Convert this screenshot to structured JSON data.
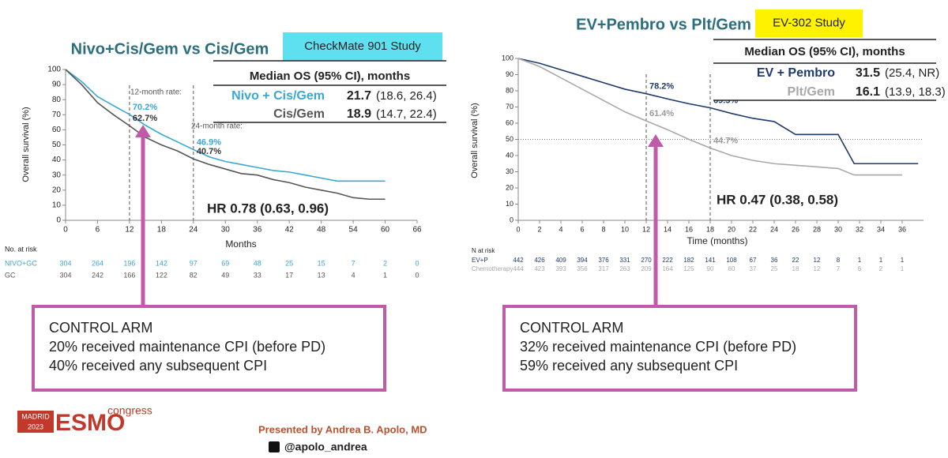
{
  "chart_data": [
    {
      "type": "line",
      "title": "Nivo+Cis/Gem vs Cis/Gem",
      "study": "CheckMate 901 Study",
      "x_label": "Months",
      "y_label": "Overall survival (%)",
      "x": [
        0,
        3,
        6,
        9,
        12,
        15,
        18,
        21,
        24,
        27,
        30,
        33,
        36,
        39,
        42,
        45,
        48,
        51,
        54,
        57,
        60
      ],
      "series": [
        {
          "name": "Nivo + Cis/Gem",
          "color": "#3aa7d4",
          "values": [
            100,
            92,
            82,
            76,
            70.2,
            63,
            57,
            52,
            46.9,
            42,
            39,
            37,
            35,
            33,
            32,
            30,
            28,
            26,
            26,
            26,
            26
          ]
        },
        {
          "name": "Cis/Gem",
          "color": "#555555",
          "values": [
            100,
            90,
            78,
            70,
            62.7,
            55,
            50,
            46,
            40.7,
            37,
            34,
            31,
            30,
            27,
            25,
            22,
            20,
            18,
            15,
            14,
            14
          ]
        }
      ],
      "xlim": [
        0,
        66
      ],
      "xticks": [
        0,
        6,
        12,
        18,
        24,
        30,
        36,
        42,
        48,
        54,
        60,
        66
      ],
      "ylim": [
        0,
        100
      ],
      "yticks": [
        0,
        10,
        20,
        30,
        40,
        50,
        60,
        70,
        80,
        90,
        100
      ],
      "ref_x": [
        12,
        24
      ],
      "notes": [
        "12-month rate:",
        "24-month rate:"
      ],
      "rate_labels": [
        {
          "x": 12,
          "y": 70.2,
          "label": "70.2%",
          "color": "#3aa7d4"
        },
        {
          "x": 12,
          "y": 62.7,
          "label": "62.7%",
          "color": "#333333"
        },
        {
          "x": 24,
          "y": 46.9,
          "label": "46.9%",
          "color": "#3aa7d4"
        },
        {
          "x": 24,
          "y": 40.7,
          "label": "40.7%",
          "color": "#333333"
        }
      ],
      "hr": "HR 0.78 (0.63, 0.96)",
      "median_header": "Median OS (95% CI), months",
      "median_rows": [
        [
          "Nivo + Cis/Gem",
          "21.7",
          "(18.6, 26.4)"
        ],
        [
          "Cis/Gem",
          "18.9",
          "(14.7, 22.4)"
        ]
      ],
      "risk_header": "No. at risk",
      "risk_rows": [
        {
          "name": "NIVO+GC",
          "values": [
            304,
            264,
            196,
            142,
            97,
            69,
            48,
            25,
            15,
            7,
            2,
            0
          ]
        },
        {
          "name": "GC",
          "values": [
            304,
            242,
            166,
            122,
            82,
            49,
            33,
            17,
            13,
            4,
            1,
            0
          ]
        }
      ],
      "control": [
        "CONTROL ARM",
        "20% received maintenance CPI (before PD)",
        "40% received any subsequent CPI"
      ]
    },
    {
      "type": "line",
      "title": "EV+Pembro vs Plt/Gem",
      "study": "EV-302 Study",
      "x_label": "Time (months)",
      "y_label": "Overall survival (%)",
      "x": [
        0,
        2,
        4,
        6,
        8,
        10,
        12,
        14,
        16,
        18,
        20,
        22,
        24,
        26,
        28,
        30,
        31.5,
        32,
        34,
        36,
        37.5
      ],
      "series": [
        {
          "name": "EV + Pembro",
          "color": "#1f3a6e",
          "values": [
            100,
            97,
            93,
            89,
            85,
            81,
            78.2,
            75,
            72,
            69.5,
            66,
            63,
            61,
            53,
            53,
            53,
            35,
            35,
            35,
            35,
            35
          ]
        },
        {
          "name": "Plt/Gem",
          "color": "#a8a8a8",
          "values": [
            100,
            95,
            88,
            81,
            74,
            67,
            61.4,
            56,
            50,
            44.7,
            40,
            37,
            35,
            34,
            33,
            32,
            28,
            28,
            28,
            28,
            null
          ]
        }
      ],
      "xlim": [
        0,
        38
      ],
      "xticks": [
        0,
        2,
        4,
        6,
        8,
        10,
        12,
        14,
        16,
        18,
        20,
        22,
        24,
        26,
        28,
        30,
        32,
        34,
        36
      ],
      "ylim": [
        0,
        100
      ],
      "yticks": [
        0,
        10,
        20,
        30,
        40,
        50,
        60,
        70,
        80,
        90,
        100
      ],
      "ref_x": [
        12,
        18
      ],
      "ref_y": [
        50
      ],
      "rate_labels": [
        {
          "x": 12,
          "y": 78.2,
          "label": "78.2%",
          "color": "#1f3a6e"
        },
        {
          "x": 12,
          "y": 61.4,
          "label": "61.4%",
          "color": "#999999"
        },
        {
          "x": 18,
          "y": 69.5,
          "label": "69.5%",
          "color": "#1f3a6e"
        },
        {
          "x": 18,
          "y": 44.7,
          "label": "44.7%",
          "color": "#999999"
        }
      ],
      "hr": "HR 0.47 (0.38, 0.58)",
      "median_header": "Median OS (95% CI), months",
      "median_rows": [
        [
          "EV + Pembro",
          "31.5",
          "(25.4, NR)"
        ],
        [
          "Plt/Gem",
          "16.1",
          "(13.9, 18.3)"
        ]
      ],
      "risk_header": "N at risk",
      "risk_rows": [
        {
          "name": "EV+P",
          "values": [
            442,
            426,
            409,
            394,
            376,
            331,
            270,
            222,
            182,
            141,
            108,
            67,
            36,
            22,
            12,
            8,
            1,
            1,
            1
          ]
        },
        {
          "name": "Chemotherapy",
          "values": [
            444,
            423,
            393,
            356,
            317,
            263,
            209,
            164,
            125,
            90,
            60,
            37,
            25,
            18,
            12,
            7,
            6,
            2,
            1
          ]
        }
      ],
      "control": [
        "CONTROL ARM",
        "32% received maintenance CPI (before PD)",
        "59% received any subsequent CPI"
      ]
    }
  ],
  "footer": {
    "logo_city": "MADRID",
    "logo_year": "2023",
    "logo_main": "ESMO",
    "logo_sub": "congress",
    "presenter": "Presented by Andrea B. Apolo, MD",
    "handle": "@apolo_andrea"
  }
}
